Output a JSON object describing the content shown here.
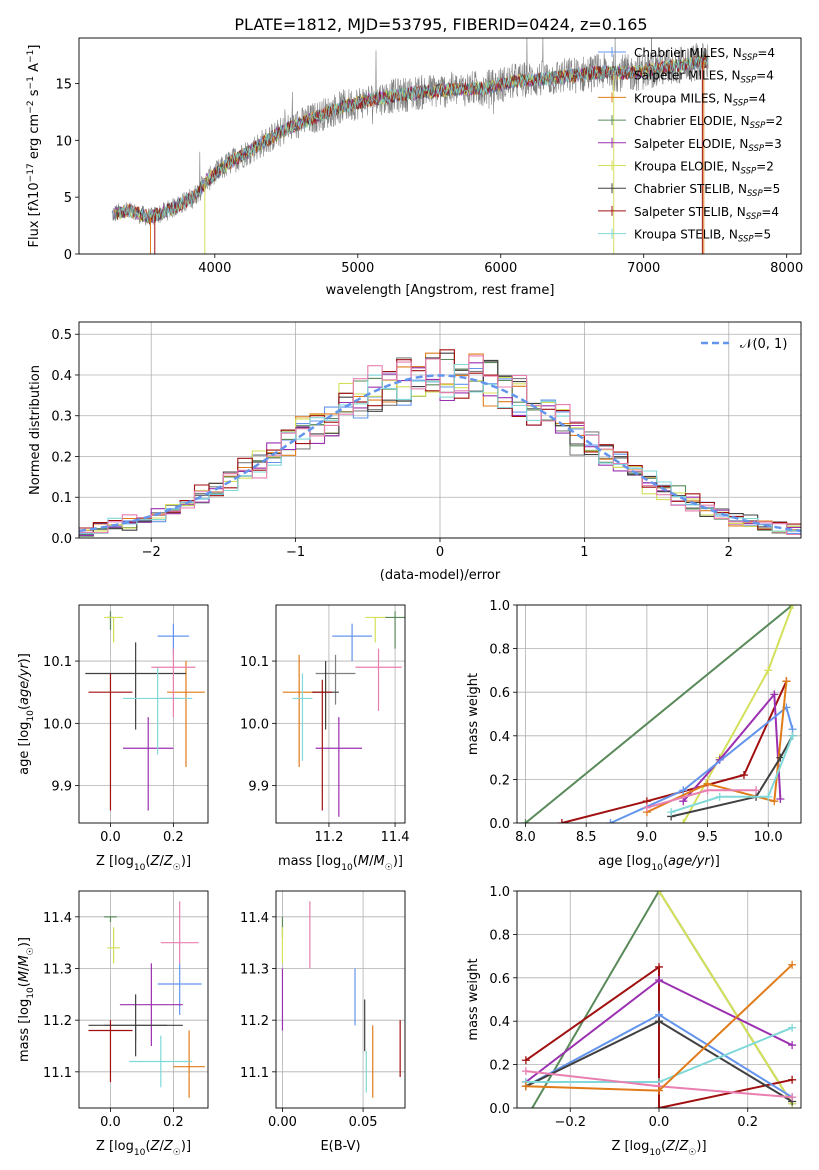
{
  "figure_title": "PLATE=1812, MJD=53795, FIBERID=0424, z=0.165",
  "colors": [
    "#6495ed",
    "#7f7f7f",
    "#e07b1a",
    "#5a8a5a",
    "#9b30b0",
    "#d4e05a",
    "#404040",
    "#a01010",
    "#80d8d8",
    "#e87fb0"
  ],
  "chart_data": [
    {
      "id": "spectrum",
      "type": "line",
      "title": "PLATE=1812, MJD=53795, FIBERID=0424, z=0.165",
      "xlabel": "wavelength [Angstrom, rest frame]",
      "ylabel": "Flux [fλ10⁻¹⁷ erg cm⁻² s⁻¹ A⁻¹]",
      "xlim": [
        3050,
        8100
      ],
      "ylim": [
        0,
        19
      ],
      "xticks": [
        4000,
        5000,
        6000,
        7000,
        8000
      ],
      "yticks": [
        0,
        5,
        10,
        15
      ],
      "grid": false,
      "legend_position": "right",
      "spectrum_envelope": {
        "x": [
          3280,
          3400,
          3550,
          3700,
          3850,
          3950,
          4100,
          4300,
          4500,
          4700,
          4900,
          5100,
          5300,
          5500,
          5700,
          5900,
          6100,
          6300,
          6500,
          6700,
          6900,
          7100,
          7300,
          7450
        ],
        "y": [
          3.5,
          3.8,
          3.2,
          4.0,
          5.0,
          6.5,
          8.0,
          9.5,
          11.0,
          12.0,
          13.0,
          13.6,
          14.0,
          14.3,
          14.5,
          14.6,
          15.2,
          15.4,
          15.7,
          16.0,
          15.9,
          16.3,
          16.7,
          17.0
        ]
      },
      "series": [
        {
          "name": "Chabrier MILES, N$_{SSP}$=4",
          "label": "Chabrier MILES, N",
          "sub": "SSP",
          "n": "=4",
          "color": "#6495ed"
        },
        {
          "name": "Salpeter MILES, N$_{SSP}$=4",
          "label": "Salpeter MILES, N",
          "sub": "SSP",
          "n": "=4",
          "color": "#7f7f7f"
        },
        {
          "name": "Kroupa MILES, N$_{SSP}$=4",
          "label": "Kroupa MILES, N",
          "sub": "SSP",
          "n": "=4",
          "color": "#e07b1a"
        },
        {
          "name": "Chabrier ELODIE, N$_{SSP}$=2",
          "label": "Chabrier ELODIE, N",
          "sub": "SSP",
          "n": "=2",
          "color": "#5a8a5a"
        },
        {
          "name": "Salpeter ELODIE, N$_{SSP}$=3",
          "label": "Salpeter ELODIE, N",
          "sub": "SSP",
          "n": "=3",
          "color": "#9b30b0"
        },
        {
          "name": "Kroupa ELODIE, N$_{SSP}$=2",
          "label": "Kroupa ELODIE, N",
          "sub": "SSP",
          "n": "=2",
          "color": "#d4e05a"
        },
        {
          "name": "Chabrier STELIB, N$_{SSP}$=5",
          "label": "Chabrier STELIB, N",
          "sub": "SSP",
          "n": "=5",
          "color": "#404040"
        },
        {
          "name": "Salpeter STELIB, N$_{SSP}$=4",
          "label": "Salpeter STELIB, N",
          "sub": "SSP",
          "n": "=4",
          "color": "#a01010"
        },
        {
          "name": "Kroupa STELIB, N$_{SSP}$=5",
          "label": "Kroupa STELIB, N",
          "sub": "SSP",
          "n": "=5",
          "color": "#80d8d8"
        }
      ]
    },
    {
      "id": "residuals",
      "type": "line",
      "xlabel": "(data-model)/error",
      "ylabel": "Normed distribution",
      "xlim": [
        -2.5,
        2.5
      ],
      "ylim": [
        0,
        0.53
      ],
      "xticks": [
        -2,
        -1,
        0,
        1,
        2
      ],
      "xtick_labels": [
        "−2",
        "−1",
        "0",
        "1",
        "2"
      ],
      "yticks": [
        0.0,
        0.1,
        0.2,
        0.3,
        0.4,
        0.5
      ],
      "ytick_labels": [
        "0.0",
        "0.1",
        "0.2",
        "0.3",
        "0.4",
        "0.5"
      ],
      "grid": true,
      "legend_position": "top-right",
      "bin_width": 0.1,
      "reference_curve": {
        "name": "𝒩(0, 1)",
        "mean": 0,
        "sigma": 1,
        "color": "#6495ed",
        "style": "dashed"
      }
    },
    {
      "id": "age_vs_Z",
      "type": "scatter",
      "xlabel": "Z [log10(Z/Z☉)]",
      "ylabel": "age  [log10(age/yr)]",
      "xlim": [
        -0.1,
        0.31
      ],
      "ylim": [
        9.84,
        10.19
      ],
      "xticks": [
        0.0,
        0.2
      ],
      "xtick_labels": [
        "0.0",
        "0.2"
      ],
      "yticks": [
        9.9,
        10.0,
        10.1
      ],
      "ytick_labels": [
        "9.9",
        "10.0",
        "10.1"
      ],
      "grid": true,
      "points": [
        {
          "x": 0.2,
          "y": 10.14,
          "x_err": 0.05,
          "y_lo": 0.03,
          "y_hi": 0.02,
          "color": "#6495ed"
        },
        {
          "x": 0.19,
          "y": 10.04,
          "x_err": 0.03,
          "y_lo": 0.0,
          "y_hi": 0.0,
          "color": "#7f7f7f"
        },
        {
          "x": 0.24,
          "y": 10.05,
          "x_err": 0.06,
          "y_lo": 0.12,
          "y_hi": 0.05,
          "color": "#e07b1a"
        },
        {
          "x": 0.0,
          "y": 10.17,
          "x_err": 0.01,
          "y_lo": 0.02,
          "y_hi": 0.01,
          "color": "#5a8a5a"
        },
        {
          "x": 0.12,
          "y": 9.96,
          "x_err": 0.08,
          "y_lo": 0.1,
          "y_hi": 0.05,
          "color": "#9b30b0"
        },
        {
          "x": 0.01,
          "y": 10.17,
          "x_err": 0.03,
          "y_lo": 0.04,
          "y_hi": 0.0,
          "color": "#d4e05a"
        },
        {
          "x": 0.08,
          "y": 10.08,
          "x_err": 0.16,
          "y_lo": 0.09,
          "y_hi": 0.05,
          "color": "#404040"
        },
        {
          "x": 0.0,
          "y": 10.05,
          "x_err": 0.07,
          "y_lo": 0.19,
          "y_hi": 0.03,
          "color": "#a01010"
        },
        {
          "x": 0.15,
          "y": 10.04,
          "x_err": 0.11,
          "y_lo": 0.09,
          "y_hi": 0.05,
          "color": "#80d8d8"
        },
        {
          "x": 0.2,
          "y": 10.09,
          "x_err": 0.07,
          "y_lo": 0.08,
          "y_hi": 0.03,
          "color": "#e87fb0"
        }
      ]
    },
    {
      "id": "age_vs_mass",
      "type": "scatter",
      "xlabel": "mass [log10(M/M☉)]",
      "ylabel": "",
      "xlim": [
        11.04,
        11.43
      ],
      "ylim": [
        9.84,
        10.19
      ],
      "xticks": [
        11.2,
        11.4
      ],
      "xtick_labels": [
        "11.2",
        "11.4"
      ],
      "yticks": [
        9.9,
        10.0,
        10.1
      ],
      "ytick_labels": [
        "9.9",
        "10.0",
        "10.1"
      ],
      "grid": true,
      "points": [
        {
          "x": 11.27,
          "y": 10.14,
          "x_err": 0.06,
          "y_lo": 0.04,
          "y_hi": 0.02,
          "color": "#6495ed"
        },
        {
          "x": 11.22,
          "y": 10.08,
          "x_err": 0.06,
          "y_lo": 0.05,
          "y_hi": 0.03,
          "color": "#7f7f7f"
        },
        {
          "x": 11.11,
          "y": 10.05,
          "x_err": 0.05,
          "y_lo": 0.12,
          "y_hi": 0.06,
          "color": "#e07b1a"
        },
        {
          "x": 11.4,
          "y": 10.17,
          "x_err": 0.03,
          "y_lo": 0.05,
          "y_hi": 0.01,
          "color": "#5a8a5a"
        },
        {
          "x": 11.23,
          "y": 9.96,
          "x_err": 0.07,
          "y_lo": 0.11,
          "y_hi": 0.05,
          "color": "#9b30b0"
        },
        {
          "x": 11.34,
          "y": 10.17,
          "x_err": 0.03,
          "y_lo": 0.04,
          "y_hi": 0.0,
          "color": "#d4e05a"
        },
        {
          "x": 11.19,
          "y": 10.05,
          "x_err": 0.04,
          "y_lo": 0.06,
          "y_hi": 0.05,
          "color": "#404040"
        },
        {
          "x": 11.18,
          "y": 10.05,
          "x_err": 0.03,
          "y_lo": 0.19,
          "y_hi": 0.02,
          "color": "#a01010"
        },
        {
          "x": 11.12,
          "y": 10.04,
          "x_err": 0.03,
          "y_lo": 0.1,
          "y_hi": 0.04,
          "color": "#80d8d8"
        },
        {
          "x": 11.35,
          "y": 10.09,
          "x_err": 0.07,
          "y_lo": 0.07,
          "y_hi": 0.03,
          "color": "#e87fb0"
        }
      ]
    },
    {
      "id": "mass_weight_vs_age",
      "type": "line",
      "xlabel": "age  [log10(age/yr)]",
      "ylabel": "mass weight",
      "xlim": [
        7.93,
        10.27
      ],
      "ylim": [
        0,
        1
      ],
      "xticks": [
        8.0,
        8.5,
        9.0,
        9.5,
        10.0
      ],
      "xtick_labels": [
        "8.0",
        "8.5",
        "9.0",
        "9.5",
        "10.0"
      ],
      "yticks": [
        0.0,
        0.2,
        0.4,
        0.6,
        0.8,
        1.0
      ],
      "ytick_labels": [
        "0.0",
        "0.2",
        "0.4",
        "0.6",
        "0.8",
        "1.0"
      ],
      "grid": true,
      "series": [
        {
          "color": "#5a8a5a",
          "x": [
            8.0,
            10.2
          ],
          "y": [
            0.0,
            1.0
          ]
        },
        {
          "color": "#d4e05a",
          "x": [
            9.3,
            9.6,
            10.0,
            10.2
          ],
          "y": [
            0.0,
            0.3,
            0.7,
            1.0
          ]
        },
        {
          "color": "#a01010",
          "x": [
            8.3,
            9.0,
            9.8,
            10.15
          ],
          "y": [
            0.0,
            0.1,
            0.22,
            0.65
          ]
        },
        {
          "color": "#9b30b0",
          "x": [
            9.3,
            9.6,
            10.05,
            10.1
          ],
          "y": [
            0.1,
            0.29,
            0.59,
            0.11
          ]
        },
        {
          "color": "#6495ed",
          "x": [
            8.7,
            9.3,
            10.15,
            10.2
          ],
          "y": [
            0.0,
            0.15,
            0.53,
            0.43
          ]
        },
        {
          "color": "#e07b1a",
          "x": [
            9.0,
            9.5,
            10.05,
            10.15
          ],
          "y": [
            0.05,
            0.18,
            0.1,
            0.65
          ]
        },
        {
          "color": "#404040",
          "x": [
            9.2,
            9.9,
            10.1,
            10.2
          ],
          "y": [
            0.03,
            0.12,
            0.3,
            0.4
          ]
        },
        {
          "color": "#80d8d8",
          "x": [
            9.2,
            9.6,
            10.0,
            10.2
          ],
          "y": [
            0.05,
            0.12,
            0.12,
            0.4
          ]
        },
        {
          "color": "#e87fb0",
          "x": [
            9.0,
            9.5,
            9.9
          ],
          "y": [
            0.07,
            0.15,
            0.15
          ]
        }
      ]
    },
    {
      "id": "mass_vs_Z",
      "type": "scatter",
      "xlabel": "Z [log10(Z/Z☉)]",
      "ylabel": "mass [log10(M/M☉)]",
      "xlim": [
        -0.1,
        0.31
      ],
      "ylim": [
        11.03,
        11.45
      ],
      "xticks": [
        0.0,
        0.2
      ],
      "xtick_labels": [
        "0.0",
        "0.2"
      ],
      "yticks": [
        11.1,
        11.2,
        11.3,
        11.4
      ],
      "ytick_labels": [
        "11.1",
        "11.2",
        "11.3",
        "11.4"
      ],
      "grid": true,
      "points": [
        {
          "x": 0.22,
          "y": 11.27,
          "x_err": 0.07,
          "y_lo": 0.06,
          "y_hi": 0.04,
          "color": "#6495ed"
        },
        {
          "x": 0.08,
          "y": 11.19,
          "x_err": 0.1,
          "y_lo": 0.03,
          "y_hi": 0.0,
          "color": "#7f7f7f"
        },
        {
          "x": 0.25,
          "y": 11.11,
          "x_err": 0.05,
          "y_lo": 0.06,
          "y_hi": 0.07,
          "color": "#e07b1a"
        },
        {
          "x": 0.0,
          "y": 11.4,
          "x_err": 0.02,
          "y_lo": 0.01,
          "y_hi": 0.0,
          "color": "#5a8a5a"
        },
        {
          "x": 0.13,
          "y": 11.23,
          "x_err": 0.1,
          "y_lo": 0.08,
          "y_hi": 0.08,
          "color": "#9b30b0"
        },
        {
          "x": 0.01,
          "y": 11.34,
          "x_err": 0.02,
          "y_lo": 0.03,
          "y_hi": 0.04,
          "color": "#d4e05a"
        },
        {
          "x": 0.08,
          "y": 11.19,
          "x_err": 0.15,
          "y_lo": 0.06,
          "y_hi": 0.06,
          "color": "#404040"
        },
        {
          "x": 0.0,
          "y": 11.18,
          "x_err": 0.07,
          "y_lo": 0.1,
          "y_hi": 0.02,
          "color": "#a01010"
        },
        {
          "x": 0.16,
          "y": 11.12,
          "x_err": 0.1,
          "y_lo": 0.05,
          "y_hi": 0.05,
          "color": "#80d8d8"
        },
        {
          "x": 0.22,
          "y": 11.35,
          "x_err": 0.06,
          "y_lo": 0.04,
          "y_hi": 0.08,
          "color": "#e87fb0"
        }
      ]
    },
    {
      "id": "mass_vs_ebv",
      "type": "scatter",
      "xlabel": "E(B-V)",
      "ylabel": "",
      "xlim": [
        -0.004,
        0.076
      ],
      "ylim": [
        11.03,
        11.45
      ],
      "xticks": [
        0.0,
        0.05
      ],
      "xtick_labels": [
        "0.00",
        "0.05"
      ],
      "yticks": [
        11.1,
        11.2,
        11.3,
        11.4
      ],
      "ytick_labels": [
        "11.1",
        "11.2",
        "11.3",
        "11.4"
      ],
      "grid": true,
      "points": [
        {
          "x": 0.045,
          "y": 11.25,
          "y_lo": 0.06,
          "y_hi": 0.05,
          "color": "#6495ed"
        },
        {
          "x": 0.051,
          "y": 11.19,
          "y_lo": 0.05,
          "y_hi": 0.05,
          "color": "#404040"
        },
        {
          "x": 0.056,
          "y": 11.12,
          "y_lo": 0.07,
          "y_hi": 0.07,
          "color": "#e07b1a"
        },
        {
          "x": 0.0,
          "y": 11.39,
          "y_lo": 0.03,
          "y_hi": 0.01,
          "color": "#5a8a5a"
        },
        {
          "x": 0.0,
          "y": 11.24,
          "y_lo": 0.06,
          "y_hi": 0.06,
          "color": "#9b30b0"
        },
        {
          "x": 0.0,
          "y": 11.34,
          "y_lo": 0.03,
          "y_hi": 0.04,
          "color": "#d4e05a"
        },
        {
          "x": 0.073,
          "y": 11.15,
          "y_lo": 0.06,
          "y_hi": 0.05,
          "color": "#a01010"
        },
        {
          "x": 0.052,
          "y": 11.1,
          "y_lo": 0.04,
          "y_hi": 0.04,
          "color": "#80d8d8"
        },
        {
          "x": 0.017,
          "y": 11.37,
          "y_lo": 0.07,
          "y_hi": 0.06,
          "color": "#e87fb0"
        }
      ]
    },
    {
      "id": "mass_weight_vs_Z",
      "type": "line",
      "xlabel": "Z [log10(Z/Z☉)]",
      "ylabel": "mass weight",
      "xlim": [
        -0.32,
        0.32
      ],
      "ylim": [
        0,
        1
      ],
      "xticks": [
        -0.2,
        0.0,
        0.2
      ],
      "xtick_labels": [
        "−0.2",
        "0.0",
        "0.2"
      ],
      "yticks": [
        0.0,
        0.2,
        0.4,
        0.6,
        0.8,
        1.0
      ],
      "ytick_labels": [
        "0.0",
        "0.2",
        "0.4",
        "0.6",
        "0.8",
        "1.0"
      ],
      "grid": true,
      "series": [
        {
          "color": "#5a8a5a",
          "x": [
            -0.3,
            0.0,
            0.3
          ],
          "y": [
            -0.05,
            1.0,
            0.02
          ]
        },
        {
          "color": "#d4e05a",
          "x": [
            0.0,
            0.3
          ],
          "y": [
            1.0,
            0.02
          ]
        },
        {
          "color": "#a01010",
          "x": [
            -0.3,
            0.0,
            0.0,
            0.3
          ],
          "y": [
            0.22,
            0.65,
            0.0,
            0.13
          ]
        },
        {
          "color": "#9b30b0",
          "x": [
            -0.3,
            0.0,
            0.3
          ],
          "y": [
            0.12,
            0.59,
            0.29
          ]
        },
        {
          "color": "#6495ed",
          "x": [
            -0.3,
            0.0,
            0.3
          ],
          "y": [
            0.1,
            0.43,
            0.05
          ]
        },
        {
          "color": "#404040",
          "x": [
            -0.3,
            0.0,
            0.3
          ],
          "y": [
            0.1,
            0.4,
            0.03
          ]
        },
        {
          "color": "#80d8d8",
          "x": [
            -0.3,
            0.0,
            0.3
          ],
          "y": [
            0.12,
            0.12,
            0.37
          ]
        },
        {
          "color": "#e87fb0",
          "x": [
            -0.3,
            0.0,
            0.3
          ],
          "y": [
            0.17,
            0.1,
            0.05
          ]
        },
        {
          "color": "#e07b1a",
          "x": [
            -0.3,
            0.0,
            0.3
          ],
          "y": [
            0.1,
            0.08,
            0.66
          ]
        }
      ]
    }
  ]
}
